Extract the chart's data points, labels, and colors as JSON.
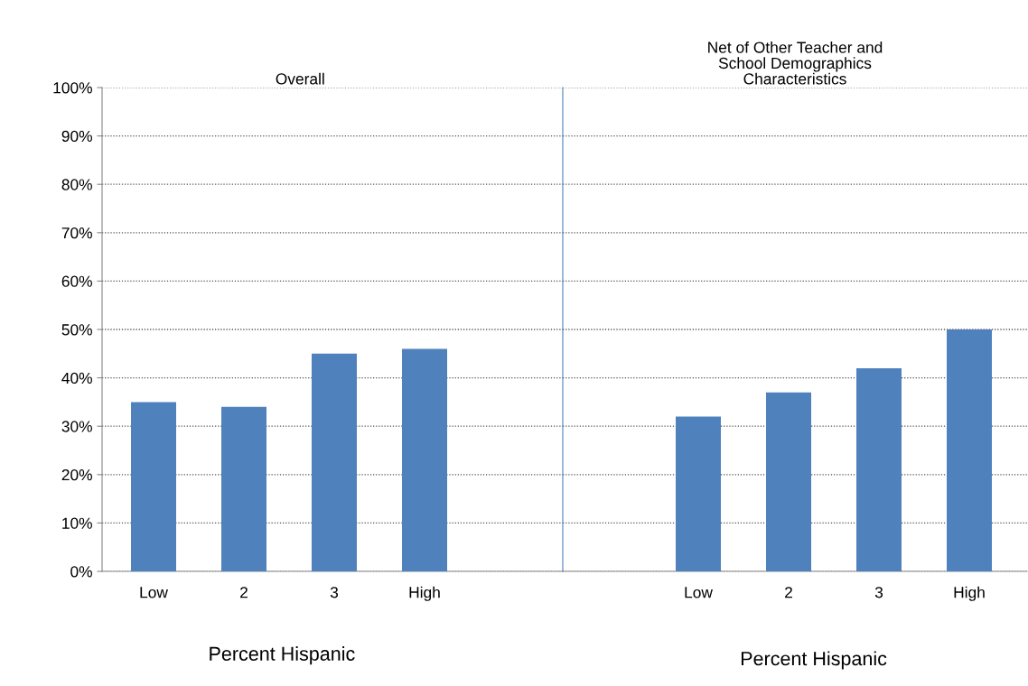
{
  "chart_data": [
    {
      "type": "bar",
      "title": "Overall",
      "xlabel": "Percent Hispanic",
      "categories": [
        "Low",
        "2",
        "3",
        "High",
        null
      ],
      "values": [
        35,
        34,
        45,
        46,
        null
      ],
      "color": "#4f81bd",
      "ylim": [
        0,
        100
      ],
      "yticks": [
        {
          "value": 0,
          "label": "0%"
        },
        {
          "value": 10,
          "label": "10%"
        },
        {
          "value": 20,
          "label": "20%"
        },
        {
          "value": 30,
          "label": "30%"
        },
        {
          "value": 40,
          "label": "40%"
        },
        {
          "value": 50,
          "label": "50%"
        },
        {
          "value": 60,
          "label": "60%"
        },
        {
          "value": 70,
          "label": "70%"
        },
        {
          "value": 80,
          "label": "80%"
        },
        {
          "value": 90,
          "label": "90%"
        },
        {
          "value": 100,
          "label": "100%"
        }
      ],
      "grid": "y"
    },
    {
      "type": "bar",
      "title": "Net of Other Teacher and\nSchool Demographics\nCharacteristics",
      "xlabel": "Percent Hispanic",
      "categories": [
        null,
        "Low",
        "2",
        "3",
        "High"
      ],
      "values": [
        null,
        32,
        37,
        42,
        50
      ],
      "color": "#4f81bd",
      "ylim": [
        0,
        100
      ],
      "yticks": [
        0,
        10,
        20,
        30,
        40,
        50,
        60,
        70,
        80,
        90,
        100
      ],
      "grid": "y",
      "tick_labels": "x"
    }
  ]
}
